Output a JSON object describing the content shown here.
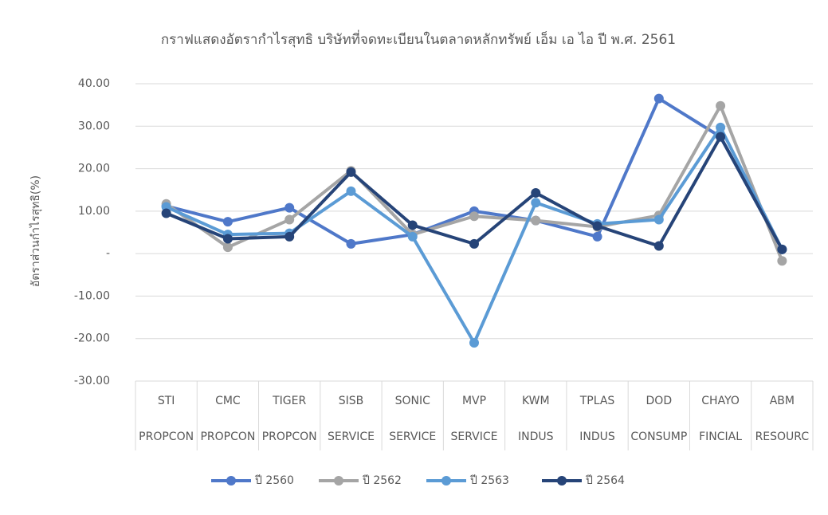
{
  "chart_data": {
    "type": "line",
    "title": "กราฟแสดงอัตรากำไรสุทธิ บริษัทที่จดทะเบียนในตลาดหลักทรัพย์ เอ็ม เอ ไอ ปี พ.ศ. 2561",
    "y_label": "อัตราส่วนกำไรสุทธิ(%)",
    "categories": [
      "STI",
      "CMC",
      "TIGER",
      "SISB",
      "SONIC",
      "MVP",
      "KWM",
      "TPLAS",
      "DOD",
      "CHAYO",
      "ABM"
    ],
    "category_sectors": [
      "PROPCON",
      "PROPCON",
      "PROPCON",
      "SERVICE",
      "SERVICE",
      "SERVICE",
      "INDUS",
      "INDUS",
      "CONSUMP",
      "FINCIAL",
      "RESOURC"
    ],
    "series": [
      {
        "name": "ปี 2560",
        "color": "#4f78c9",
        "values": [
          11.2,
          7.5,
          10.8,
          2.3,
          4.5,
          10.0,
          7.8,
          4.0,
          36.5,
          27.5,
          1.0
        ]
      },
      {
        "name": "ปี 2562",
        "color": "#a5a5a5",
        "values": [
          11.7,
          1.5,
          8.0,
          19.5,
          4.5,
          8.8,
          7.8,
          6.3,
          9.0,
          34.8,
          -1.7
        ]
      },
      {
        "name": "ปี 2563",
        "color": "#5b9bd5",
        "values": [
          11.0,
          4.5,
          4.8,
          14.7,
          4.0,
          -21.0,
          12.0,
          7.0,
          8.0,
          29.7,
          1.0
        ]
      },
      {
        "name": "ปี 2564",
        "color": "#264478",
        "values": [
          9.5,
          3.5,
          4.0,
          19.2,
          6.7,
          2.3,
          14.3,
          6.5,
          1.8,
          27.5,
          1.0
        ]
      }
    ],
    "ylim": [
      -30,
      40
    ],
    "yticks": [
      {
        "value": -30,
        "label": "-30.00"
      },
      {
        "value": -20,
        "label": "-20.00"
      },
      {
        "value": -10,
        "label": "-10.00"
      },
      {
        "value": 0,
        "label": "-"
      },
      {
        "value": 10,
        "label": "10.00"
      },
      {
        "value": 20,
        "label": "20.00"
      },
      {
        "value": 30,
        "label": "30.00"
      },
      {
        "value": 40,
        "label": "40.00"
      }
    ],
    "grid": true,
    "legend": "bottom"
  }
}
